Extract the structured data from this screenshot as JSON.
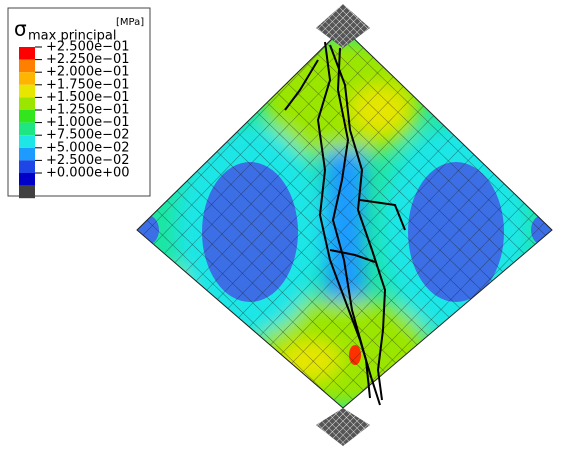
{
  "legend": {
    "symbol": "σ",
    "subscript": "max principal",
    "unit": "[MPa]",
    "labels": [
      "+2.500e−01",
      "+2.250e−01",
      "+2.000e−01",
      "+1.750e−01",
      "+1.500e−01",
      "+1.250e−01",
      "+1.000e−01",
      "+7.500e−02",
      "+5.000e−02",
      "+2.500e−02",
      "+0.000e+00"
    ],
    "colors": [
      "#ff0000",
      "#ff7f00",
      "#ffb400",
      "#e6e600",
      "#9be600",
      "#32e61e",
      "#1ee682",
      "#1ee6e6",
      "#1e9bff",
      "#1e46e6",
      "#0000c8",
      "#404040"
    ]
  }
}
